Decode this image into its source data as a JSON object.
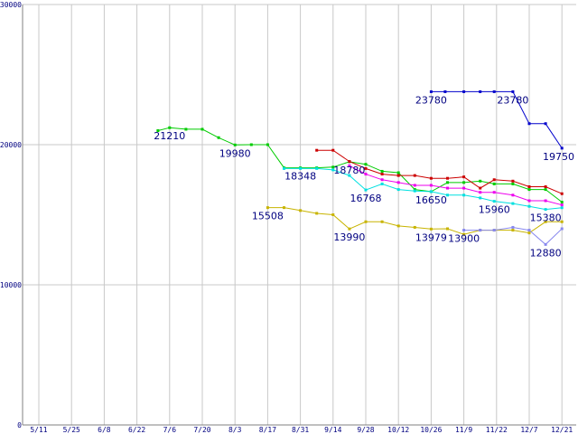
{
  "chart_data": {
    "type": "line",
    "title": "",
    "xlabel": "",
    "ylabel": "",
    "ylim": [
      0,
      30000
    ],
    "y_ticks": [
      0,
      10000,
      20000,
      30000
    ],
    "grid": true,
    "categories": [
      "5/11",
      "5/25",
      "6/8",
      "6/22",
      "7/6",
      "7/20",
      "8/3",
      "8/17",
      "8/31",
      "9/14",
      "9/28",
      "10/12",
      "10/26",
      "11/9",
      "11/22",
      "12/7",
      "12/21"
    ],
    "series": [
      {
        "color": "#0000cc",
        "points": [
          [
            "10/26",
            23780
          ],
          [
            "11/1",
            23780
          ],
          [
            "11/9",
            23780
          ],
          [
            "11/16",
            23780
          ],
          [
            "11/22",
            23780
          ],
          [
            "11/30",
            23780
          ],
          [
            "12/7",
            21500
          ],
          [
            "12/14",
            21500
          ],
          [
            "12/21",
            19750
          ]
        ]
      },
      {
        "color": "#00cc00",
        "points": [
          [
            "7/1",
            21000
          ],
          [
            "7/6",
            21210
          ],
          [
            "7/13",
            21100
          ],
          [
            "7/20",
            21100
          ],
          [
            "7/27",
            20500
          ],
          [
            "8/3",
            19980
          ],
          [
            "8/10",
            20000
          ],
          [
            "8/17",
            20000
          ],
          [
            "8/24",
            18348
          ],
          [
            "8/31",
            18348
          ],
          [
            "9/7",
            18348
          ],
          [
            "9/14",
            18400
          ],
          [
            "9/21",
            18780
          ],
          [
            "9/28",
            18600
          ],
          [
            "10/5",
            18100
          ],
          [
            "10/12",
            18000
          ],
          [
            "10/19",
            16800
          ],
          [
            "10/26",
            16650
          ],
          [
            "11/2",
            17300
          ],
          [
            "11/9",
            17300
          ],
          [
            "11/16",
            17400
          ],
          [
            "11/22",
            17200
          ],
          [
            "11/30",
            17200
          ],
          [
            "12/7",
            16800
          ],
          [
            "12/14",
            16800
          ],
          [
            "12/21",
            15900
          ]
        ]
      },
      {
        "color": "#cc0000",
        "points": [
          [
            "9/7",
            19600
          ],
          [
            "9/14",
            19600
          ],
          [
            "9/21",
            18800
          ],
          [
            "9/28",
            18300
          ],
          [
            "10/5",
            17900
          ],
          [
            "10/12",
            17800
          ],
          [
            "10/19",
            17800
          ],
          [
            "10/26",
            17600
          ],
          [
            "11/2",
            17600
          ],
          [
            "11/9",
            17700
          ],
          [
            "11/16",
            16900
          ],
          [
            "11/22",
            17500
          ],
          [
            "11/30",
            17400
          ],
          [
            "12/7",
            17000
          ],
          [
            "12/14",
            17000
          ],
          [
            "12/21",
            16500
          ]
        ]
      },
      {
        "color": "#00e0e0",
        "points": [
          [
            "8/24",
            18300
          ],
          [
            "8/31",
            18300
          ],
          [
            "9/7",
            18300
          ],
          [
            "9/14",
            18200
          ],
          [
            "9/21",
            17800
          ],
          [
            "9/28",
            16768
          ],
          [
            "10/5",
            17200
          ],
          [
            "10/12",
            16800
          ],
          [
            "10/19",
            16700
          ],
          [
            "10/26",
            16650
          ],
          [
            "11/2",
            16400
          ],
          [
            "11/9",
            16400
          ],
          [
            "11/16",
            16200
          ],
          [
            "11/22",
            15960
          ],
          [
            "11/30",
            15800
          ],
          [
            "12/7",
            15600
          ],
          [
            "12/14",
            15380
          ],
          [
            "12/21",
            15500
          ]
        ]
      },
      {
        "color": "#ee00ee",
        "points": [
          [
            "9/21",
            18500
          ],
          [
            "9/28",
            17900
          ],
          [
            "10/5",
            17500
          ],
          [
            "10/12",
            17300
          ],
          [
            "10/19",
            17100
          ],
          [
            "10/26",
            17100
          ],
          [
            "11/2",
            16900
          ],
          [
            "11/9",
            16900
          ],
          [
            "11/16",
            16600
          ],
          [
            "11/22",
            16600
          ],
          [
            "11/30",
            16400
          ],
          [
            "12/7",
            16000
          ],
          [
            "12/14",
            16000
          ],
          [
            "12/21",
            15700
          ]
        ]
      },
      {
        "color": "#c8b400",
        "points": [
          [
            "8/17",
            15508
          ],
          [
            "8/24",
            15508
          ],
          [
            "8/31",
            15300
          ],
          [
            "9/7",
            15100
          ],
          [
            "9/14",
            15000
          ],
          [
            "9/21",
            13990
          ],
          [
            "9/28",
            14500
          ],
          [
            "10/5",
            14500
          ],
          [
            "10/12",
            14200
          ],
          [
            "10/19",
            14100
          ],
          [
            "10/26",
            13979
          ],
          [
            "11/2",
            14000
          ],
          [
            "11/9",
            13600
          ],
          [
            "11/16",
            13900
          ],
          [
            "11/22",
            13900
          ],
          [
            "11/30",
            13900
          ],
          [
            "12/7",
            13700
          ],
          [
            "12/14",
            14500
          ],
          [
            "12/21",
            14500
          ]
        ]
      },
      {
        "color": "#8888ee",
        "points": [
          [
            "11/9",
            13900
          ],
          [
            "11/16",
            13900
          ],
          [
            "11/22",
            13900
          ],
          [
            "11/30",
            14100
          ],
          [
            "12/7",
            13900
          ],
          [
            "12/14",
            12880
          ],
          [
            "12/21",
            14000
          ]
        ]
      }
    ],
    "data_labels": [
      {
        "text": "23780",
        "x": "10/26",
        "y": 23780
      },
      {
        "text": "23780",
        "x": "11/30",
        "y": 23780
      },
      {
        "text": "19750",
        "x": "12/21",
        "y": 19750
      },
      {
        "text": "21210",
        "x": "7/6",
        "y": 21210
      },
      {
        "text": "19980",
        "x": "8/3",
        "y": 19980
      },
      {
        "text": "18348",
        "x": "8/31",
        "y": 18348
      },
      {
        "text": "18780",
        "x": "9/21",
        "y": 18780
      },
      {
        "text": "16768",
        "x": "9/28",
        "y": 16768
      },
      {
        "text": "16650",
        "x": "10/26",
        "y": 16650
      },
      {
        "text": "15960",
        "x": "11/22",
        "y": 15960
      },
      {
        "text": "15380",
        "x": "12/14",
        "y": 15380
      },
      {
        "text": "15508",
        "x": "8/17",
        "y": 15508
      },
      {
        "text": "13990",
        "x": "9/21",
        "y": 13990
      },
      {
        "text": "13979",
        "x": "10/26",
        "y": 13979
      },
      {
        "text": "13900",
        "x": "11/9",
        "y": 13900
      },
      {
        "text": "12880",
        "x": "12/14",
        "y": 12880
      }
    ]
  }
}
